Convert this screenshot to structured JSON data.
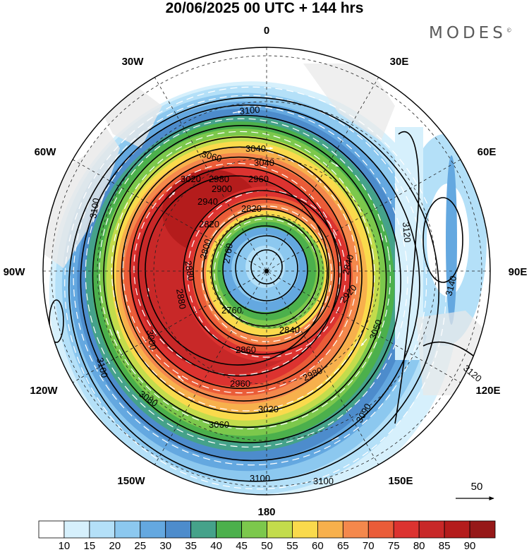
{
  "title": "20/06/2025  00 UTC  + 144 hrs",
  "brand": {
    "name": "MODES",
    "mark": "©"
  },
  "longitude_labels": {
    "lon_0": "0",
    "lon_30e": "30E",
    "lon_60e": "60E",
    "lon_90e": "90E",
    "lon_120e": "120E",
    "lon_150e": "150E",
    "lon_180": "180",
    "lon_150w": "150W",
    "lon_120w": "120W",
    "lon_90w": "90W",
    "lon_60w": "60W",
    "lon_30w": "30W"
  },
  "contour_labels": [
    "3100",
    "3060",
    "3040",
    "3040",
    "3020",
    "2980",
    "2960",
    "2940",
    "2900",
    "2880",
    "2820",
    "2820",
    "2800",
    "2760",
    "2760",
    "2840",
    "2840",
    "2860",
    "2880",
    "2920",
    "2960",
    "2980",
    "3000",
    "3020",
    "3050",
    "3060",
    "3080",
    "3090",
    "3100",
    "3100",
    "3100",
    "3100",
    "3120",
    "3120",
    "3140"
  ],
  "vector_reference": {
    "value": "50"
  },
  "colorbar": {
    "ticks": [
      "10",
      "15",
      "20",
      "25",
      "30",
      "35",
      "40",
      "45",
      "50",
      "55",
      "60",
      "65",
      "70",
      "75",
      "80",
      "85",
      "90"
    ],
    "colors": [
      "#ffffff",
      "#d6f0fc",
      "#b4e0f8",
      "#8cc8ef",
      "#64a8e0",
      "#4d8ccc",
      "#45a28a",
      "#4cb04c",
      "#7cc84c",
      "#c3dc4c",
      "#fada4c",
      "#f7b04c",
      "#f4884c",
      "#ea5c38",
      "#dc3330",
      "#c82828",
      "#b41c1c",
      "#961818"
    ]
  }
}
